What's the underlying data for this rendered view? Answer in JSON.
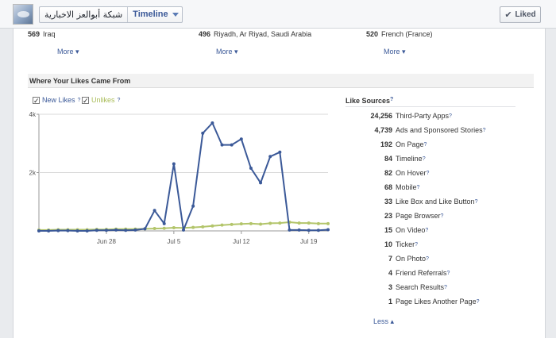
{
  "header": {
    "page_name": "شبكة أبوالعز الاخبارية",
    "view_label": "Timeline",
    "liked_label": "Liked"
  },
  "locations": [
    {
      "count": "569",
      "name": "Iraq",
      "more": "More"
    },
    {
      "count": "496",
      "name": "Riyadh, Ar Riyad, Saudi Arabia",
      "more": "More"
    },
    {
      "count": "520",
      "name": "French (France)",
      "more": "More"
    }
  ],
  "likes_section": {
    "title": "Where Your Likes Came From",
    "legend_new": "New Likes",
    "legend_unlikes": "Unlikes",
    "help": "?"
  },
  "colors": {
    "new_likes": "#3b5998",
    "unlikes": "#b3c56b"
  },
  "chart_data": {
    "type": "line",
    "x": [
      "Jun 21",
      "Jun 22",
      "Jun 23",
      "Jun 24",
      "Jun 25",
      "Jun 26",
      "Jun 27",
      "Jun 28",
      "Jun 29",
      "Jun 30",
      "Jul 1",
      "Jul 2",
      "Jul 3",
      "Jul 4",
      "Jul 5",
      "Jul 6",
      "Jul 7",
      "Jul 8",
      "Jul 9",
      "Jul 10",
      "Jul 11",
      "Jul 12",
      "Jul 13",
      "Jul 14",
      "Jul 15",
      "Jul 16",
      "Jul 17",
      "Jul 18",
      "Jul 19",
      "Jul 20",
      "Jul 21"
    ],
    "xticks": [
      "Jun 28",
      "Jul 5",
      "Jul 12",
      "Jul 19"
    ],
    "yticks": [
      "2k",
      "4k"
    ],
    "ylim": [
      0,
      4000
    ],
    "grid": "horizontal",
    "series": [
      {
        "name": "New Likes",
        "values": [
          0,
          0,
          10,
          10,
          0,
          0,
          20,
          20,
          30,
          20,
          30,
          70,
          700,
          250,
          2300,
          30,
          850,
          3350,
          3700,
          2950,
          2950,
          3150,
          2150,
          1650,
          2550,
          2700,
          30,
          30,
          20,
          20,
          40
        ]
      },
      {
        "name": "Unlikes",
        "values": [
          30,
          30,
          40,
          40,
          40,
          40,
          50,
          50,
          60,
          60,
          60,
          70,
          80,
          90,
          110,
          100,
          120,
          140,
          170,
          200,
          220,
          240,
          250,
          230,
          260,
          270,
          300,
          270,
          270,
          250,
          250
        ]
      }
    ]
  },
  "sources": {
    "title": "Like Sources",
    "help": "?",
    "rows": [
      {
        "value": "24,256",
        "label": "Third-Party Apps"
      },
      {
        "value": "4,739",
        "label": "Ads and Sponsored Stories"
      },
      {
        "value": "192",
        "label": "On Page"
      },
      {
        "value": "84",
        "label": "Timeline"
      },
      {
        "value": "82",
        "label": "On Hover"
      },
      {
        "value": "68",
        "label": "Mobile"
      },
      {
        "value": "33",
        "label": "Like Box and Like Button"
      },
      {
        "value": "23",
        "label": "Page Browser"
      },
      {
        "value": "15",
        "label": "On Video"
      },
      {
        "value": "10",
        "label": "Ticker"
      },
      {
        "value": "7",
        "label": "On Photo"
      },
      {
        "value": "4",
        "label": "Friend Referrals"
      },
      {
        "value": "3",
        "label": "Search Results"
      },
      {
        "value": "1",
        "label": "Page Likes Another Page"
      }
    ],
    "less_label": "Less"
  }
}
